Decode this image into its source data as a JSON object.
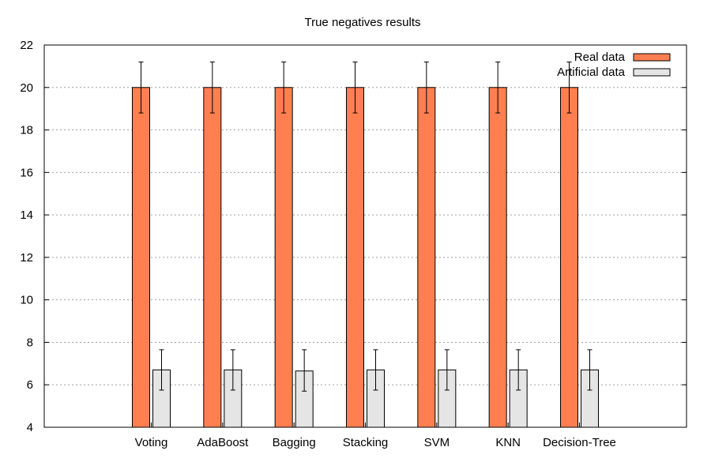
{
  "chart_data": {
    "type": "bar",
    "title": "True negatives results",
    "xlabel": "",
    "ylabel": "",
    "ylim": [
      4,
      22
    ],
    "yticks": [
      4,
      6,
      8,
      10,
      12,
      14,
      16,
      18,
      20,
      22
    ],
    "grid": "horizontal dotted",
    "legend_position": "top-right",
    "categories": [
      "Voting",
      "AdaBoost",
      "Bagging",
      "Stacking",
      "SVM",
      "KNN",
      "Decision-Tree"
    ],
    "series": [
      {
        "name": "Real data",
        "color": "#ff7f50",
        "values": [
          20,
          20,
          20,
          20,
          20,
          20,
          20
        ],
        "error_low": [
          18.8,
          18.8,
          18.8,
          18.8,
          18.8,
          18.8,
          18.8
        ],
        "error_high": [
          21.2,
          21.2,
          21.2,
          21.2,
          21.2,
          21.2,
          21.2
        ]
      },
      {
        "name": "Artificial data",
        "color": "#e5e5e5",
        "values": [
          6.7,
          6.7,
          6.65,
          6.7,
          6.7,
          6.7,
          6.7
        ],
        "error_low": [
          5.75,
          5.75,
          5.7,
          5.75,
          5.75,
          5.75,
          5.75
        ],
        "error_high": [
          7.65,
          7.65,
          7.65,
          7.65,
          7.65,
          7.65,
          7.65
        ]
      }
    ]
  }
}
